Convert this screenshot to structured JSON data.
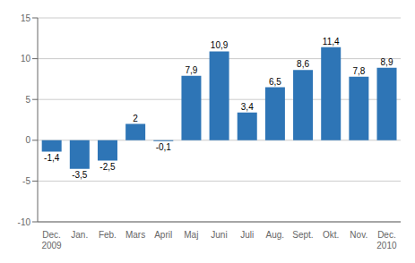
{
  "chart_data": {
    "type": "bar",
    "categories": [
      "Dec.\n2009",
      "Jan.",
      "Feb.",
      "Mars",
      "April",
      "Maj",
      "Juni",
      "Juli",
      "Aug.",
      "Sept.",
      "Okt.",
      "Nov.",
      "Dec.\n2010"
    ],
    "values": [
      -1.4,
      -3.5,
      -2.5,
      2.0,
      -0.1,
      7.9,
      10.9,
      3.4,
      6.5,
      8.6,
      11.4,
      7.8,
      8.9
    ],
    "value_labels": [
      "-1,4",
      "-3,5",
      "-2,5",
      "2",
      "-0,1",
      "7,9",
      "10,9",
      "3,4",
      "6,5",
      "8,6",
      "11,4",
      "7,8",
      "8,9"
    ],
    "data_labels": true,
    "color": "#2E75B6",
    "ylim": [
      -10,
      15
    ],
    "yticks": [
      -10,
      -5,
      0,
      5,
      10,
      15
    ],
    "grid": true
  }
}
